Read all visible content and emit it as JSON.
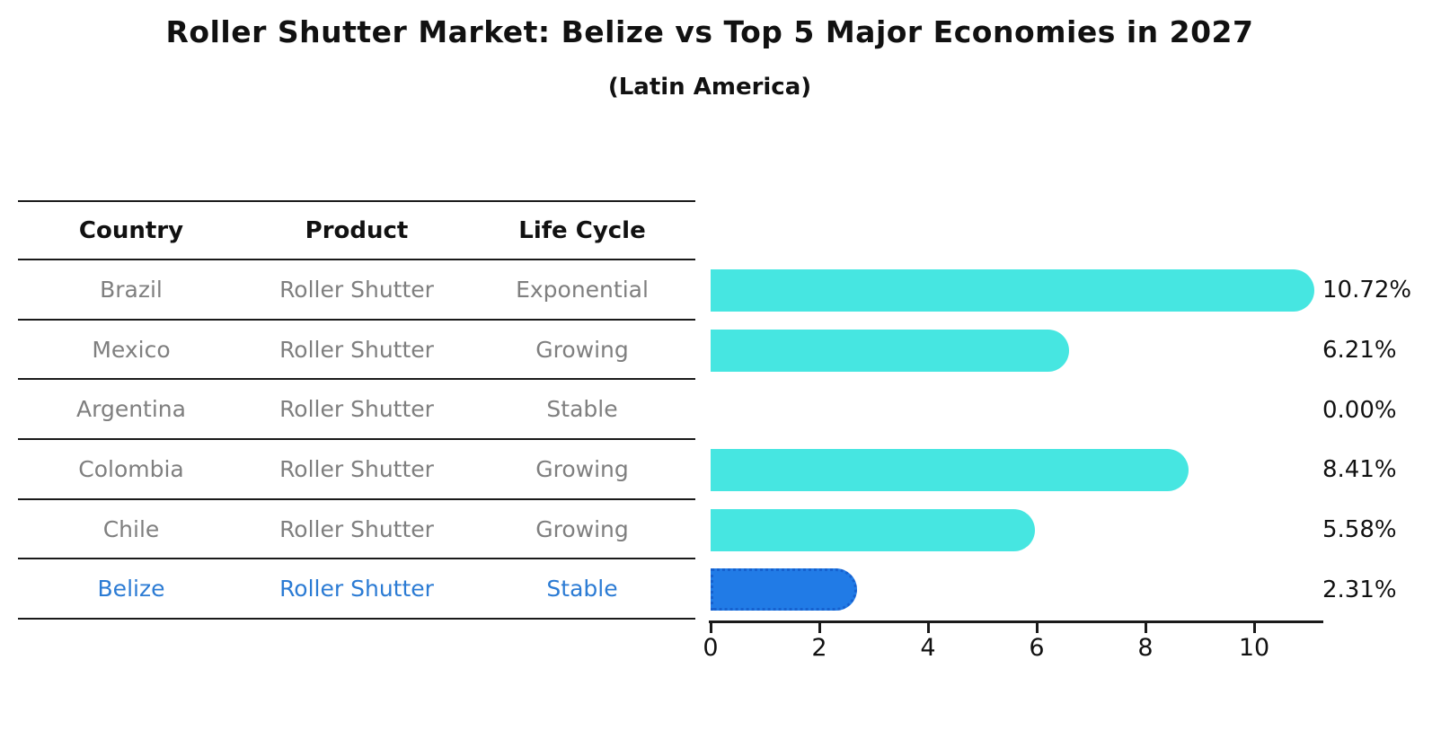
{
  "title": "Roller Shutter Market: Belize vs Top 5 Major Economies in 2027",
  "subtitle": "(Latin America)",
  "table": {
    "headers": [
      "Country",
      "Product",
      "Life Cycle"
    ],
    "rows": [
      {
        "country": "Brazil",
        "product": "Roller Shutter",
        "life_cycle": "Exponential",
        "highlight": false
      },
      {
        "country": "Mexico",
        "product": "Roller Shutter",
        "life_cycle": "Growing",
        "highlight": false
      },
      {
        "country": "Argentina",
        "product": "Roller Shutter",
        "life_cycle": "Stable",
        "highlight": false
      },
      {
        "country": "Colombia",
        "product": "Roller Shutter",
        "life_cycle": "Growing",
        "highlight": false
      },
      {
        "country": "Chile",
        "product": "Roller Shutter",
        "life_cycle": "Growing",
        "highlight": false
      },
      {
        "country": "Belize",
        "product": "Roller Shutter",
        "life_cycle": "Stable",
        "highlight": true
      }
    ]
  },
  "chart_data": {
    "type": "bar",
    "orientation": "horizontal",
    "title": "Roller Shutter Market: Belize vs Top 5 Major Economies in 2027",
    "subtitle": "(Latin America)",
    "categories": [
      "Brazil",
      "Mexico",
      "Argentina",
      "Colombia",
      "Chile",
      "Belize"
    ],
    "values": [
      10.72,
      6.21,
      0.0,
      8.41,
      5.58,
      2.31
    ],
    "value_labels": [
      "10.72%",
      "6.21%",
      "0.00%",
      "8.41%",
      "5.58%",
      "2.31%"
    ],
    "xlabel": "",
    "ylabel": "",
    "xlim": [
      0,
      11.25
    ],
    "xticks": [
      0,
      2,
      4,
      6,
      8,
      10
    ],
    "xtick_labels": [
      "0",
      "2",
      "4",
      "6",
      "8",
      "10"
    ],
    "grid": false,
    "legend": false,
    "bar_color": "#46e6e1",
    "highlight_bar_color": "#217be6",
    "highlight_border_color": "#1661cf",
    "highlight_index": 5,
    "highlight_text_color": "#2b7bd4",
    "row_text_color": "#7f7f7f"
  }
}
